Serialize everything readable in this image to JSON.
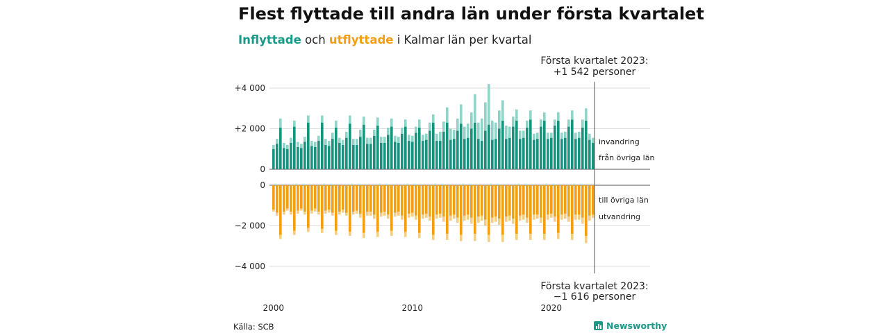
{
  "title": "Flest flyttade till andra län under första kvartalet",
  "subtitle": {
    "in_label": "Inflyttade",
    "and": "och",
    "out_label": "utflyttade",
    "rest": "i Kalmar län per kvartal"
  },
  "colors": {
    "in_domestic": "#16927f",
    "in_immigration": "#8fd4c9",
    "out_domestic": "#f29f14",
    "out_emigration": "#f6cd85",
    "grid": "#dddddd"
  },
  "annotation_top": {
    "line1": "Första kvartalet 2023:",
    "line2": "+1 542 personer"
  },
  "annotation_bottom": {
    "line1": "Första kvartalet 2023:",
    "line2": "−1 616 personer"
  },
  "legend": {
    "immigration": "invandring",
    "in_domestic": "från övriga län",
    "out_domestic": "till övriga län",
    "emigration": "utvandring"
  },
  "source": "Källa: SCB",
  "brand": "Newsworthy",
  "chart_data": {
    "type": "bar",
    "stacked": true,
    "period": "quarterly 2000 Q1 – 2023 Q1",
    "x_ticks": [
      "2000",
      "2010",
      "2020"
    ],
    "y_ticks_top": [
      "+4 000",
      "+2 000",
      "0"
    ],
    "y_ticks_bottom": [
      "0",
      "−2 000",
      "−4 000"
    ],
    "ylim_top": [
      0,
      4300
    ],
    "ylim_bottom": [
      -4300,
      0
    ],
    "grid": true,
    "in_domestic": [
      1000,
      1250,
      2050,
      1050,
      1000,
      1300,
      2100,
      1100,
      1050,
      1350,
      2300,
      1150,
      1100,
      1400,
      2300,
      1200,
      1150,
      1500,
      2050,
      1300,
      1200,
      1550,
      2250,
      1200,
      1200,
      1600,
      2200,
      1250,
      1250,
      1650,
      2150,
      1300,
      1300,
      1700,
      2100,
      1350,
      1300,
      1750,
      2100,
      1400,
      1350,
      1800,
      2050,
      1400,
      1450,
      1900,
      2300,
      1400,
      1400,
      1850,
      2300,
      1450,
      1500,
      1900,
      2250,
      1500,
      1550,
      2000,
      2300,
      1500,
      1400,
      1900,
      2200,
      1450,
      1500,
      2000,
      2400,
      1500,
      1550,
      2100,
      2400,
      1500,
      1550,
      2050,
      2450,
      1450,
      1500,
      2100,
      2400,
      1500,
      1550,
      2150,
      2400,
      1500,
      1550,
      2100,
      2450,
      1500,
      1550,
      2050,
      2400,
      1450,
      1300
    ],
    "in_immigration": [
      200,
      250,
      450,
      250,
      200,
      250,
      300,
      250,
      200,
      250,
      350,
      250,
      250,
      250,
      350,
      300,
      250,
      300,
      350,
      250,
      250,
      300,
      400,
      300,
      300,
      350,
      400,
      300,
      300,
      300,
      400,
      300,
      300,
      350,
      400,
      300,
      300,
      300,
      350,
      300,
      300,
      300,
      400,
      300,
      300,
      400,
      400,
      350,
      450,
      500,
      750,
      550,
      450,
      600,
      950,
      600,
      700,
      800,
      1400,
      800,
      1100,
      1400,
      2000,
      950,
      800,
      900,
      1000,
      650,
      550,
      500,
      550,
      400,
      350,
      350,
      450,
      300,
      300,
      350,
      400,
      300,
      250,
      300,
      400,
      300,
      300,
      350,
      450,
      300,
      300,
      400,
      600,
      300,
      250
    ],
    "out_domestic": [
      1200,
      1350,
      2450,
      1300,
      1150,
      1300,
      2250,
      1250,
      1150,
      1300,
      2100,
      1250,
      1150,
      1300,
      2150,
      1250,
      1200,
      1350,
      2250,
      1300,
      1200,
      1350,
      2300,
      1300,
      1250,
      1400,
      2350,
      1300,
      1300,
      1450,
      2300,
      1350,
      1300,
      1450,
      2250,
      1350,
      1300,
      1500,
      2300,
      1400,
      1350,
      1500,
      2350,
      1450,
      1400,
      1550,
      2450,
      1450,
      1400,
      1550,
      2400,
      1500,
      1450,
      1600,
      2450,
      1500,
      1450,
      1600,
      2400,
      1550,
      1500,
      1700,
      2450,
      1600,
      1550,
      1650,
      2450,
      1550,
      1500,
      1650,
      2400,
      1500,
      1450,
      1600,
      2400,
      1450,
      1450,
      1600,
      2400,
      1450,
      1400,
      1550,
      2350,
      1450,
      1400,
      1550,
      2400,
      1450,
      1450,
      1600,
      2500,
      1500,
      1450
    ],
    "out_emigration": [
      100,
      150,
      200,
      150,
      100,
      150,
      200,
      150,
      100,
      150,
      200,
      150,
      150,
      150,
      200,
      150,
      150,
      150,
      200,
      150,
      150,
      150,
      200,
      150,
      150,
      200,
      250,
      200,
      200,
      200,
      250,
      200,
      200,
      200,
      250,
      200,
      200,
      200,
      250,
      200,
      200,
      200,
      250,
      200,
      200,
      200,
      250,
      200,
      200,
      250,
      300,
      250,
      200,
      250,
      300,
      250,
      250,
      300,
      350,
      300,
      250,
      300,
      350,
      250,
      250,
      300,
      350,
      250,
      250,
      250,
      300,
      250,
      250,
      250,
      300,
      250,
      200,
      250,
      300,
      250,
      200,
      250,
      300,
      250,
      250,
      250,
      300,
      250,
      250,
      300,
      350,
      250,
      170
    ]
  }
}
